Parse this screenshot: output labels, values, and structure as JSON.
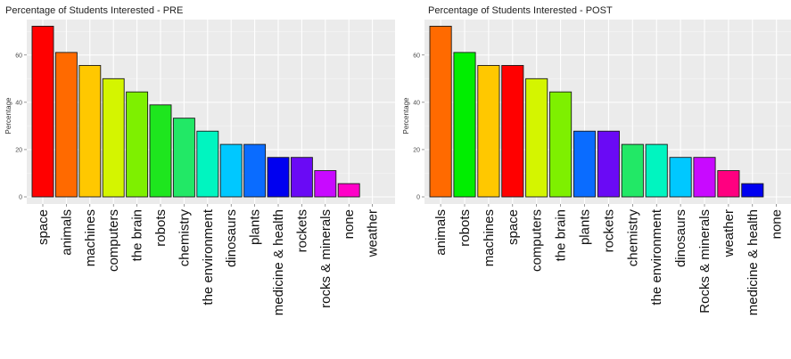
{
  "chart_data": [
    {
      "type": "bar",
      "title": "Percentage of Students Interested - PRE",
      "ylabel": "Percentage",
      "xlabel": "",
      "ylim": [
        0,
        75
      ],
      "yticks": [
        0,
        20,
        40,
        60
      ],
      "grid": true,
      "categories": [
        "space",
        "animals",
        "machines",
        "computers",
        "the brain",
        "robots",
        "chemistry",
        "the environment",
        "dinosaurs",
        "plants",
        "medicine & health",
        "rockets",
        "rocks & minerals",
        "none",
        "weather"
      ],
      "values": [
        72.2,
        61.1,
        55.6,
        50.0,
        44.4,
        38.9,
        33.3,
        27.8,
        22.2,
        22.2,
        16.7,
        16.7,
        11.1,
        5.6,
        0
      ],
      "colors": [
        "#ff0000",
        "#ff6a00",
        "#ffc800",
        "#d4f500",
        "#7ef000",
        "#1ee61e",
        "#22e866",
        "#00f5c0",
        "#00c8ff",
        "#0a6cff",
        "#0000f0",
        "#6a0af5",
        "#c80aff",
        "#ff00c8",
        "#ff0080"
      ]
    },
    {
      "type": "bar",
      "title": "Percentage of Students Interested - POST",
      "ylabel": "Percentage",
      "xlabel": "",
      "ylim": [
        0,
        75
      ],
      "yticks": [
        0,
        20,
        40,
        60
      ],
      "grid": true,
      "categories": [
        "animals",
        "robots",
        "machines",
        "space",
        "computers",
        "the brain",
        "plants",
        "rockets",
        "chemistry",
        "the environment",
        "dinosaurs",
        "Rocks & minerals",
        "weather",
        "medicine & health",
        "none"
      ],
      "values": [
        72.2,
        61.1,
        55.6,
        55.6,
        50.0,
        44.4,
        27.8,
        27.8,
        22.2,
        22.2,
        16.7,
        16.7,
        11.1,
        5.6,
        0
      ],
      "colors": [
        "#ff6a00",
        "#00ee00",
        "#ffc800",
        "#ff0000",
        "#d4f500",
        "#7ef000",
        "#0a6cff",
        "#6a0af5",
        "#22e866",
        "#00f5c0",
        "#00c8ff",
        "#c80aff",
        "#ff0080",
        "#0000f0",
        "#ff00c8"
      ]
    }
  ]
}
